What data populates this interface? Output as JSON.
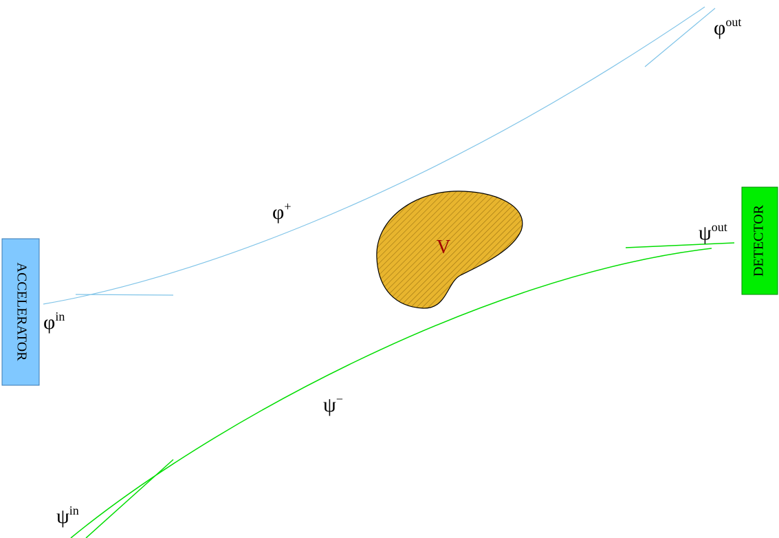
{
  "accelerator": {
    "label": "ACCELERATOR"
  },
  "detector": {
    "label": "DETECTOR"
  },
  "potential": {
    "label": "V"
  },
  "states": [
    {
      "symbol": "φ",
      "superscript": "in"
    },
    {
      "symbol": "φ",
      "superscript": "+"
    },
    {
      "symbol": "φ",
      "superscript": "out"
    },
    {
      "symbol": "ψ",
      "superscript": "in"
    },
    {
      "symbol": "ψ",
      "superscript": "−"
    },
    {
      "symbol": "ψ",
      "superscript": "out"
    }
  ]
}
